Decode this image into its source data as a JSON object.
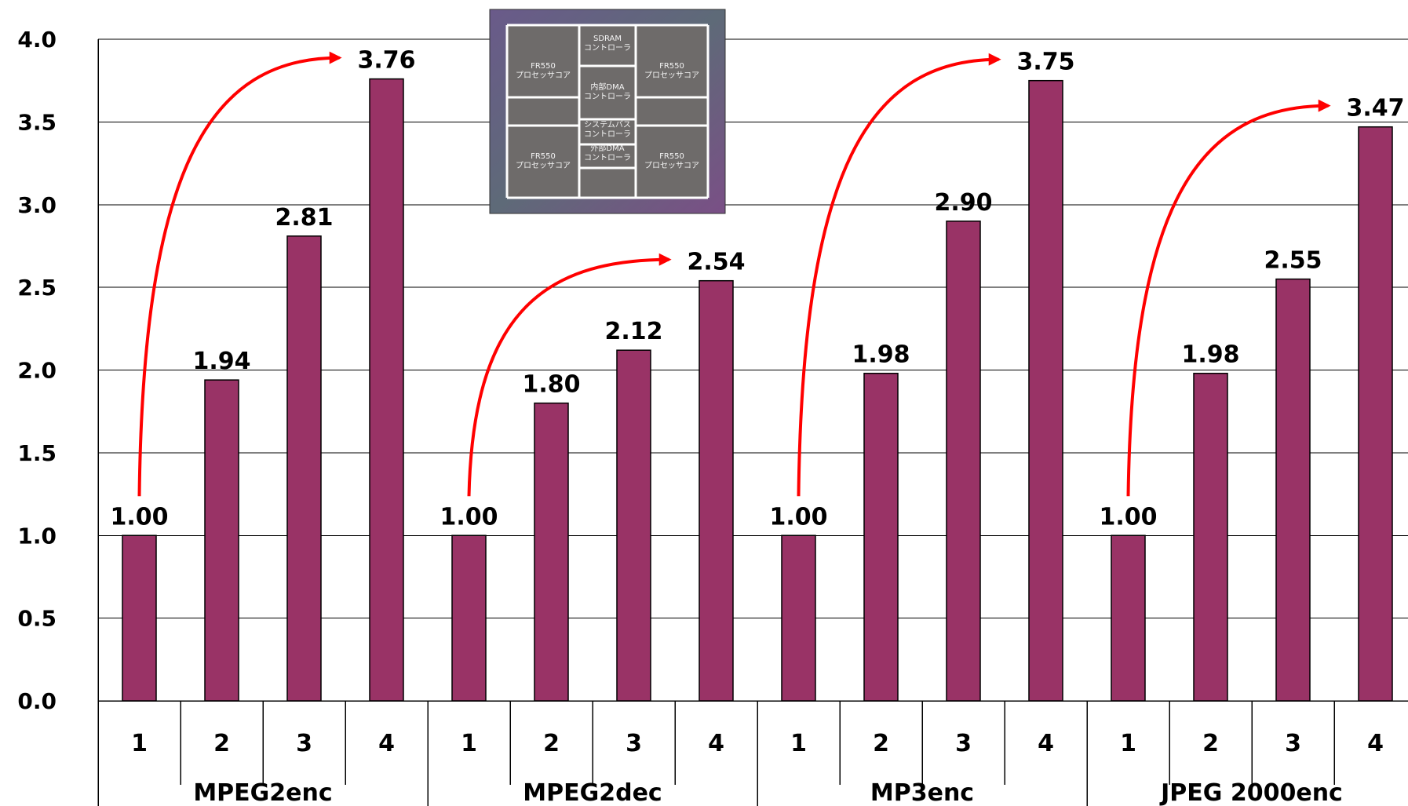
{
  "chart_data": {
    "type": "bar",
    "title": "",
    "xlabel": "",
    "ylabel": "",
    "ylim": [
      0,
      4.0
    ],
    "yticks": [
      "0.0",
      "0.5",
      "1.0",
      "1.5",
      "2.0",
      "2.5",
      "3.0",
      "3.5",
      "4.0"
    ],
    "grid": true,
    "bar_color": "#993366",
    "arrow_color": "#ff0000",
    "groups": [
      {
        "name": "MPEG2enc",
        "categories": [
          "1",
          "2",
          "3",
          "4"
        ],
        "values": [
          1.0,
          1.94,
          2.81,
          3.76
        ],
        "labels": [
          "1.00",
          "1.94",
          "2.81",
          "3.76"
        ]
      },
      {
        "name": "MPEG2dec",
        "categories": [
          "1",
          "2",
          "3",
          "4"
        ],
        "values": [
          1.0,
          1.8,
          2.12,
          2.54
        ],
        "labels": [
          "1.00",
          "1.80",
          "2.12",
          "2.54"
        ]
      },
      {
        "name": "MP3enc",
        "categories": [
          "1",
          "2",
          "3",
          "4"
        ],
        "values": [
          1.0,
          1.98,
          2.9,
          3.75
        ],
        "labels": [
          "1.00",
          "1.98",
          "2.90",
          "3.75"
        ]
      },
      {
        "name": "JPEG 2000enc",
        "categories": [
          "1",
          "2",
          "3",
          "4"
        ],
        "values": [
          1.0,
          1.98,
          2.55,
          3.47
        ],
        "labels": [
          "1.00",
          "1.98",
          "2.55",
          "3.47"
        ]
      }
    ]
  },
  "chip_image": {
    "blocks": [
      {
        "id": "sdram",
        "lines": [
          "SDRAM",
          "コントローラ"
        ]
      },
      {
        "id": "core-tl",
        "lines": [
          "FR550",
          "プロセッサコア"
        ]
      },
      {
        "id": "core-tr",
        "lines": [
          "FR550",
          "プロセッサコア"
        ]
      },
      {
        "id": "idma",
        "lines": [
          "内部DMA",
          "コントローラ"
        ]
      },
      {
        "id": "sysbus",
        "lines": [
          "システムバス",
          "コントローラ"
        ]
      },
      {
        "id": "edma",
        "lines": [
          "外部DMA",
          "コントローラ"
        ]
      },
      {
        "id": "core-bl",
        "lines": [
          "FR550",
          "プロセッサコア"
        ]
      },
      {
        "id": "core-br",
        "lines": [
          "FR550",
          "プロセッサコア"
        ]
      }
    ]
  }
}
